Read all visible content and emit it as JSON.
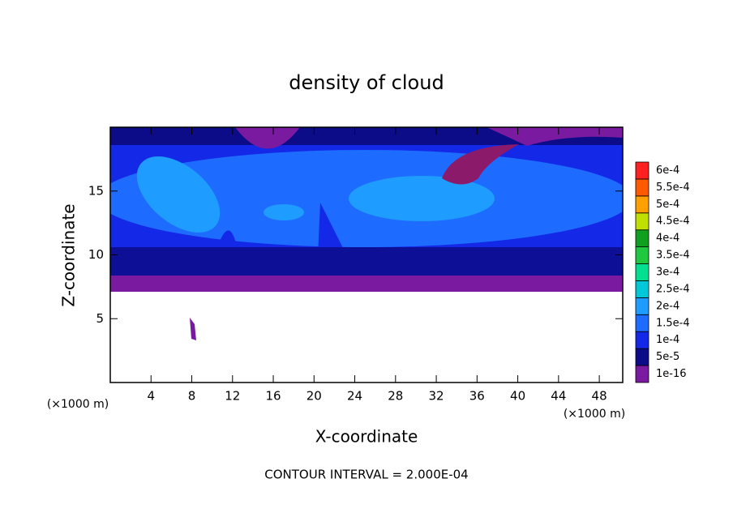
{
  "chart_data": {
    "type": "contour",
    "title": "density of cloud",
    "x_label": "X-coordinate",
    "y_label": "Z-coordinate",
    "x_unit": "(×1000 m)",
    "y_unit": "(×1000 m)",
    "footnote": "CONTOUR INTERVAL = 2.000E-04",
    "xlim": [
      0,
      50.3
    ],
    "ylim": [
      0,
      20
    ],
    "xticks": [
      4,
      8,
      12,
      16,
      20,
      24,
      28,
      32,
      36,
      40,
      44,
      48
    ],
    "yticks": [
      5,
      10,
      15
    ],
    "colorbar": {
      "levels": [
        {
          "value": 1e-16,
          "label": "1e-16"
        },
        {
          "value": 5e-05,
          "label": "5e-5"
        },
        {
          "value": 0.0001,
          "label": "1e-4"
        },
        {
          "value": 0.00015,
          "label": "1.5e-4"
        },
        {
          "value": 0.0002,
          "label": "2e-4"
        },
        {
          "value": 0.00025,
          "label": "2.5e-4"
        },
        {
          "value": 0.0003,
          "label": "3e-4"
        },
        {
          "value": 0.00035,
          "label": "3.5e-4"
        },
        {
          "value": 0.0004,
          "label": "4e-4"
        },
        {
          "value": 0.00045,
          "label": "4.5e-4"
        },
        {
          "value": 0.0005,
          "label": "5e-4"
        },
        {
          "value": 0.00055,
          "label": "5.5e-4"
        },
        {
          "value": 0.0006,
          "label": "6e-4"
        }
      ],
      "colors": [
        "#7a1aa0",
        "#0c0c88",
        "#1428e8",
        "#1e6cff",
        "#1e9cff",
        "#00c8d8",
        "#00e090",
        "#20c840",
        "#10a020",
        "#c0e000",
        "#ffa000",
        "#ff5a00",
        "#ff2020",
        "#ff8c8c"
      ]
    }
  }
}
